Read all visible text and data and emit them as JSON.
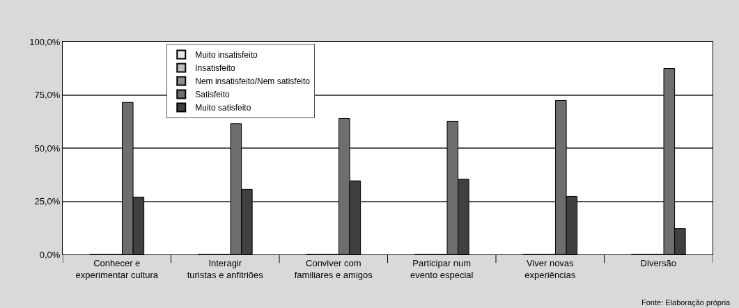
{
  "chart_data": {
    "type": "bar",
    "categories": [
      "Conhecer e\nexperimentar cultura",
      "Interagir\nturistas e anfitriões",
      "Conviver com\nfamiliares e amigos",
      "Participar num\nevento especial",
      "Viver novas\nexperiências",
      "Diversão"
    ],
    "series": [
      {
        "name": "Muito insatisfeito",
        "color": "#e6e6e6",
        "values": [
          0,
          0,
          0,
          0,
          0,
          0
        ]
      },
      {
        "name": "Insatisfeito",
        "color": "#bdbdbd",
        "values": [
          0,
          0,
          0,
          0,
          0,
          0
        ]
      },
      {
        "name": "Nem insatisfeito/Nem satisfeito",
        "color": "#8e8e8e",
        "values": [
          0,
          0,
          0,
          0,
          0,
          0
        ]
      },
      {
        "name": "Satisfeito",
        "color": "#6d6e70",
        "values": [
          71.5,
          61.5,
          63.9,
          62.6,
          72.4,
          87.4
        ]
      },
      {
        "name": "Muito satisfeito",
        "color": "#404040",
        "values": [
          27.0,
          30.6,
          34.6,
          35.4,
          27.3,
          12.2
        ]
      }
    ],
    "ylim": [
      0,
      100
    ],
    "yticks": [
      {
        "value": 0,
        "label": "0,0%"
      },
      {
        "value": 25,
        "label": "25,0%"
      },
      {
        "value": 50,
        "label": "50,0%"
      },
      {
        "value": 75,
        "label": "75,0%"
      },
      {
        "value": 100,
        "label": "100,0%"
      }
    ],
    "grid": "y",
    "legend": "top left",
    "annotations": [
      "Fonte: Elaboração própria"
    ]
  }
}
